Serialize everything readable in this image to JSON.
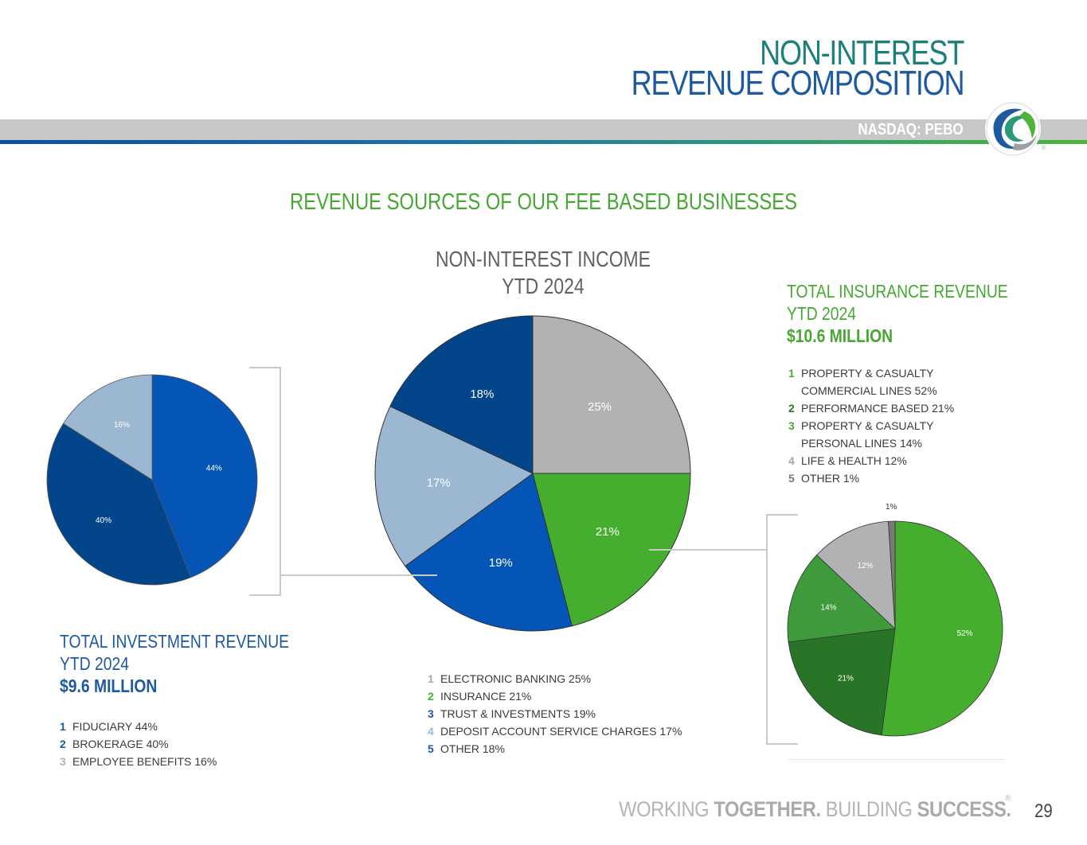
{
  "header": {
    "title_line1": "NON-INTEREST",
    "title_line2": "REVENUE COMPOSITION",
    "ticker": "NASDAQ: PEBO",
    "logo_icon": "peoples-bancorp-logo-icon"
  },
  "section_heading": "REVENUE SOURCES OF OUR FEE BASED BUSINESSES",
  "colors": {
    "gray": "#b1b2b4",
    "green": "#46ae2f",
    "blue": "#0555b6",
    "light_blue": "#9bb7d2",
    "navy": "#02458a",
    "dark_green": "#287528",
    "mid_green": "#3f9a3c",
    "dark_gray": "#787878"
  },
  "chart_data": [
    {
      "type": "pie",
      "id": "non-interest-income",
      "title_line1": "NON-INTEREST INCOME",
      "title_line2": "YTD 2024",
      "slices": [
        {
          "num": "1",
          "name": "ELECTRONIC BANKING",
          "value": 25,
          "label": "25%",
          "color": "#b1b2b4",
          "legend": "ELECTRONIC BANKING 25%"
        },
        {
          "num": "2",
          "name": "INSURANCE",
          "value": 21,
          "label": "21%",
          "color": "#46ae2f",
          "legend": "INSURANCE 21%"
        },
        {
          "num": "3",
          "name": "TRUST & INVESTMENTS",
          "value": 19,
          "label": "19%",
          "color": "#0555b6",
          "legend": "TRUST & INVESTMENTS 19%"
        },
        {
          "num": "4",
          "name": "DEPOSIT ACCOUNT SERVICE CHARGES",
          "value": 17,
          "label": "17%",
          "color": "#9bb7d2",
          "legend": "DEPOSIT ACCOUNT SERVICE CHARGES 17%"
        },
        {
          "num": "5",
          "name": "OTHER",
          "value": 18,
          "label": "18%",
          "color": "#02458a",
          "legend": "OTHER 18%"
        }
      ]
    },
    {
      "type": "pie",
      "id": "investment-revenue",
      "title_line1": "TOTAL INVESTMENT REVENUE",
      "title_line2": "YTD 2024",
      "amount": "$9.6 MILLION",
      "slices": [
        {
          "num": "1",
          "name": "FIDUCIARY",
          "value": 44,
          "label": "44%",
          "color": "#0555b6",
          "legend": "FIDUCIARY 44%"
        },
        {
          "num": "2",
          "name": "BROKERAGE",
          "value": 40,
          "label": "40%",
          "color": "#02458a",
          "legend": "BROKERAGE 40%"
        },
        {
          "num": "3",
          "name": "EMPLOYEE BENEFITS",
          "value": 16,
          "label": "16%",
          "color": "#9bb7d2",
          "legend": "EMPLOYEE BENEFITS 16%"
        }
      ]
    },
    {
      "type": "pie",
      "id": "insurance-revenue",
      "title_line1": "TOTAL INSURANCE REVENUE",
      "title_line2": "YTD 2024",
      "amount": "$10.6 MILLION",
      "slices": [
        {
          "num": "1",
          "name": "PROPERTY & CASUALTY COMMERCIAL LINES",
          "value": 52,
          "label": "52%",
          "color": "#46ae2f",
          "legend": "PROPERTY & CASUALTY",
          "legend2": "COMMERCIAL LINES 52%"
        },
        {
          "num": "2",
          "name": "PERFORMANCE BASED",
          "value": 21,
          "label": "21%",
          "color": "#287528",
          "legend": "PERFORMANCE BASED 21%"
        },
        {
          "num": "3",
          "name": "PROPERTY & CASUALTY PERSONAL LINES",
          "value": 14,
          "label": "14%",
          "color": "#3f9a3c",
          "legend": "PROPERTY & CASUALTY",
          "legend2": "PERSONAL LINES 14%"
        },
        {
          "num": "4",
          "name": "LIFE & HEALTH",
          "value": 12,
          "label": "12%",
          "color": "#b1b2b4",
          "legend": "LIFE & HEALTH 12%"
        },
        {
          "num": "5",
          "name": "OTHER",
          "value": 1,
          "label": "1%",
          "color": "#787878",
          "legend": "OTHER 1%"
        }
      ]
    }
  ],
  "legend_num_colors": {
    "center": [
      "#a6a7a9",
      "#46ae2f",
      "#1d5aa0",
      "#9bb7d2",
      "#1d5aa0"
    ],
    "investment": [
      "#1d5aa0",
      "#1d5aa0",
      "#9bb7d2"
    ],
    "insurance": [
      "#46ae2f",
      "#287528",
      "#46ae2f",
      "#a6a7a9",
      "#787878"
    ]
  },
  "footer": {
    "tagline_a": "WORKING ",
    "tagline_b": "TOGETHER.",
    "tagline_c": " BUILDING ",
    "tagline_d": "SUCCESS.",
    "registered": "®",
    "page_number": "29"
  }
}
